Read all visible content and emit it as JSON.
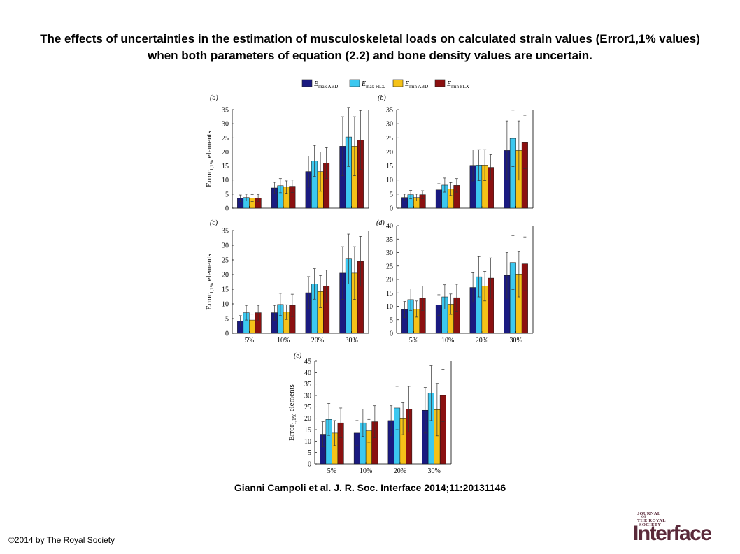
{
  "slide": {
    "title": "The effects of uncertainties in the estimation of musculoskeletal loads on calculated strain values (Error1,1% values) when both parameters of equation (2.2) and bone density values are uncertain.",
    "citation": "Gianni Campoli et al. J. R. Soc. Interface 2014;11:20131146",
    "copyright": "©2014 by The Royal Society",
    "logo": {
      "line1": "JOURNAL",
      "line2": "OF",
      "line3": "THE ROYAL",
      "line4": "SOCIETY",
      "big": "Interface"
    }
  },
  "legend": {
    "entries": [
      {
        "base": "E",
        "sub": "max ABD",
        "color": "#1a1a80"
      },
      {
        "base": "E",
        "sub": "max FLX",
        "color": "#3cc8f0"
      },
      {
        "base": "E",
        "sub": "min ABD",
        "color": "#f5c218"
      },
      {
        "base": "E",
        "sub": "min FLX",
        "color": "#8b1010"
      }
    ]
  },
  "chart_data": [
    {
      "type": "bar",
      "panel": "(a)",
      "ylabel_main": "Error",
      "ylabel_sub": "1,1%",
      "ylabel_rest": " elements",
      "ylim": [
        0,
        35
      ],
      "yticks": [
        0,
        5,
        10,
        15,
        20,
        25,
        30,
        35
      ],
      "categories": [
        "5%",
        "10%",
        "20%",
        "30%"
      ],
      "show_xticklabels": false,
      "series": [
        {
          "name": "Emax ABD",
          "values": [
            3.5,
            7.2,
            13.0,
            22.0
          ],
          "errors": [
            1.2,
            2.0,
            5.5,
            10.5
          ]
        },
        {
          "name": "Emax FLX",
          "values": [
            3.8,
            8.0,
            16.8,
            25.3
          ],
          "errors": [
            1.2,
            2.5,
            5.5,
            10.5
          ]
        },
        {
          "name": "Emin ABD",
          "values": [
            3.6,
            7.5,
            13.0,
            22.0
          ],
          "errors": [
            1.2,
            2.2,
            7.0,
            10.5
          ]
        },
        {
          "name": "Emin FLX",
          "values": [
            3.6,
            7.8,
            16.0,
            24.2
          ],
          "errors": [
            1.2,
            2.2,
            5.5,
            10.5
          ]
        }
      ]
    },
    {
      "type": "bar",
      "panel": "(b)",
      "ylim": [
        0,
        35
      ],
      "yticks": [
        0,
        5,
        10,
        15,
        20,
        25,
        30,
        35
      ],
      "categories": [
        "5%",
        "10%",
        "20%",
        "30%"
      ],
      "show_xticklabels": false,
      "series": [
        {
          "name": "Emax ABD",
          "values": [
            3.8,
            6.5,
            15.2,
            20.5
          ],
          "errors": [
            1.2,
            2.2,
            5.5,
            10.5
          ]
        },
        {
          "name": "Emax FLX",
          "values": [
            4.8,
            8.2,
            15.3,
            24.8
          ],
          "errors": [
            1.5,
            2.5,
            5.5,
            10.0
          ]
        },
        {
          "name": "Emin ABD",
          "values": [
            3.8,
            6.8,
            15.3,
            20.5
          ],
          "errors": [
            1.2,
            2.3,
            5.5,
            10.5
          ]
        },
        {
          "name": "Emin FLX",
          "values": [
            4.8,
            8.1,
            14.5,
            23.5
          ],
          "errors": [
            1.4,
            2.4,
            4.5,
            9.5
          ]
        }
      ]
    },
    {
      "type": "bar",
      "panel": "(c)",
      "ylabel_main": "Error",
      "ylabel_sub": "1,1%",
      "ylabel_rest": " elements",
      "ylim": [
        0,
        35
      ],
      "yticks": [
        0,
        5,
        10,
        15,
        20,
        25,
        30,
        35
      ],
      "categories": [
        "5%",
        "10%",
        "20%",
        "30%"
      ],
      "show_xticklabels": true,
      "series": [
        {
          "name": "Emax ABD",
          "values": [
            4.2,
            7.0,
            13.8,
            20.5
          ],
          "errors": [
            1.8,
            2.5,
            5.5,
            9.0
          ]
        },
        {
          "name": "Emax FLX",
          "values": [
            7.0,
            9.8,
            16.8,
            25.3
          ],
          "errors": [
            2.5,
            3.8,
            5.2,
            8.5
          ]
        },
        {
          "name": "Emin ABD",
          "values": [
            4.5,
            7.2,
            14.2,
            20.5
          ],
          "errors": [
            2.0,
            2.5,
            5.5,
            9.0
          ]
        },
        {
          "name": "Emin FLX",
          "values": [
            7.0,
            9.5,
            16.0,
            24.5
          ],
          "errors": [
            2.5,
            3.8,
            5.5,
            8.5
          ]
        }
      ]
    },
    {
      "type": "bar",
      "panel": "(d)",
      "ylim": [
        0,
        40
      ],
      "yticks": [
        0,
        5,
        10,
        15,
        20,
        25,
        30,
        35,
        40
      ],
      "categories": [
        "5%",
        "10%",
        "20%",
        "30%"
      ],
      "show_xticklabels": true,
      "series": [
        {
          "name": "Emax ABD",
          "values": [
            8.8,
            10.5,
            17.0,
            21.5
          ],
          "errors": [
            3.0,
            3.8,
            5.5,
            8.5
          ]
        },
        {
          "name": "Emax FLX",
          "values": [
            12.5,
            13.5,
            21.0,
            26.3
          ],
          "errors": [
            4.0,
            4.5,
            7.5,
            10.0
          ]
        },
        {
          "name": "Emin ABD",
          "values": [
            9.0,
            10.8,
            17.5,
            22.0
          ],
          "errors": [
            3.0,
            3.8,
            5.5,
            8.5
          ]
        },
        {
          "name": "Emin FLX",
          "values": [
            13.0,
            13.2,
            20.5,
            25.8
          ],
          "errors": [
            4.5,
            5.0,
            7.5,
            10.0
          ]
        }
      ]
    },
    {
      "type": "bar",
      "panel": "(e)",
      "ylabel_main": "Error",
      "ylabel_sub": "1,1%",
      "ylabel_rest": " elements",
      "ylim": [
        0,
        45
      ],
      "yticks": [
        0,
        5,
        10,
        15,
        20,
        25,
        30,
        35,
        40,
        45
      ],
      "categories": [
        "5%",
        "10%",
        "20%",
        "30%"
      ],
      "show_xticklabels": true,
      "series": [
        {
          "name": "Emax ABD",
          "values": [
            13.0,
            13.5,
            19.0,
            23.5
          ],
          "errors": [
            5.5,
            5.5,
            6.5,
            10.0
          ]
        },
        {
          "name": "Emax FLX",
          "values": [
            19.5,
            18.0,
            24.5,
            31.0
          ],
          "errors": [
            7.0,
            6.0,
            9.5,
            12.0
          ]
        },
        {
          "name": "Emin ABD",
          "values": [
            13.5,
            14.5,
            19.8,
            23.8
          ],
          "errors": [
            5.5,
            5.0,
            7.0,
            11.5
          ]
        },
        {
          "name": "Emin FLX",
          "values": [
            18.0,
            18.5,
            24.0,
            30.0
          ],
          "errors": [
            6.5,
            7.0,
            10.0,
            11.5
          ]
        }
      ]
    }
  ]
}
